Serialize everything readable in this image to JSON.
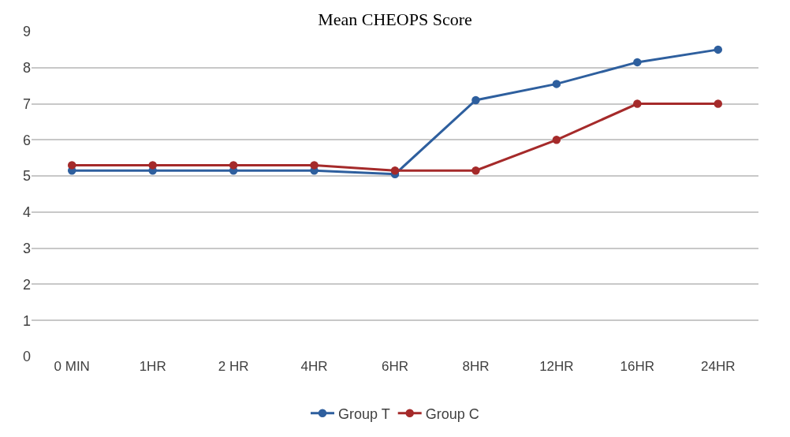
{
  "chart_data": {
    "type": "line",
    "title": "Mean CHEOPS Score",
    "categories": [
      "0 MIN",
      "1HR",
      "2 HR",
      "4HR",
      "6HR",
      "8HR",
      "12HR",
      "16HR",
      "24HR"
    ],
    "series": [
      {
        "name": "Group T",
        "color": "#2e5f9e",
        "values": [
          5.15,
          5.15,
          5.15,
          5.15,
          5.05,
          7.1,
          7.55,
          8.15,
          8.5
        ]
      },
      {
        "name": "Group C",
        "color": "#a52a2a",
        "values": [
          5.3,
          5.3,
          5.3,
          5.3,
          5.15,
          5.15,
          6.0,
          7.0,
          7.0
        ]
      }
    ],
    "ylim": [
      0,
      9
    ],
    "yticks": [
      0,
      1,
      2,
      3,
      4,
      5,
      6,
      7,
      8,
      9
    ],
    "grid": "y",
    "legend": "bottom",
    "marker": "circle",
    "line_style": "solid"
  }
}
